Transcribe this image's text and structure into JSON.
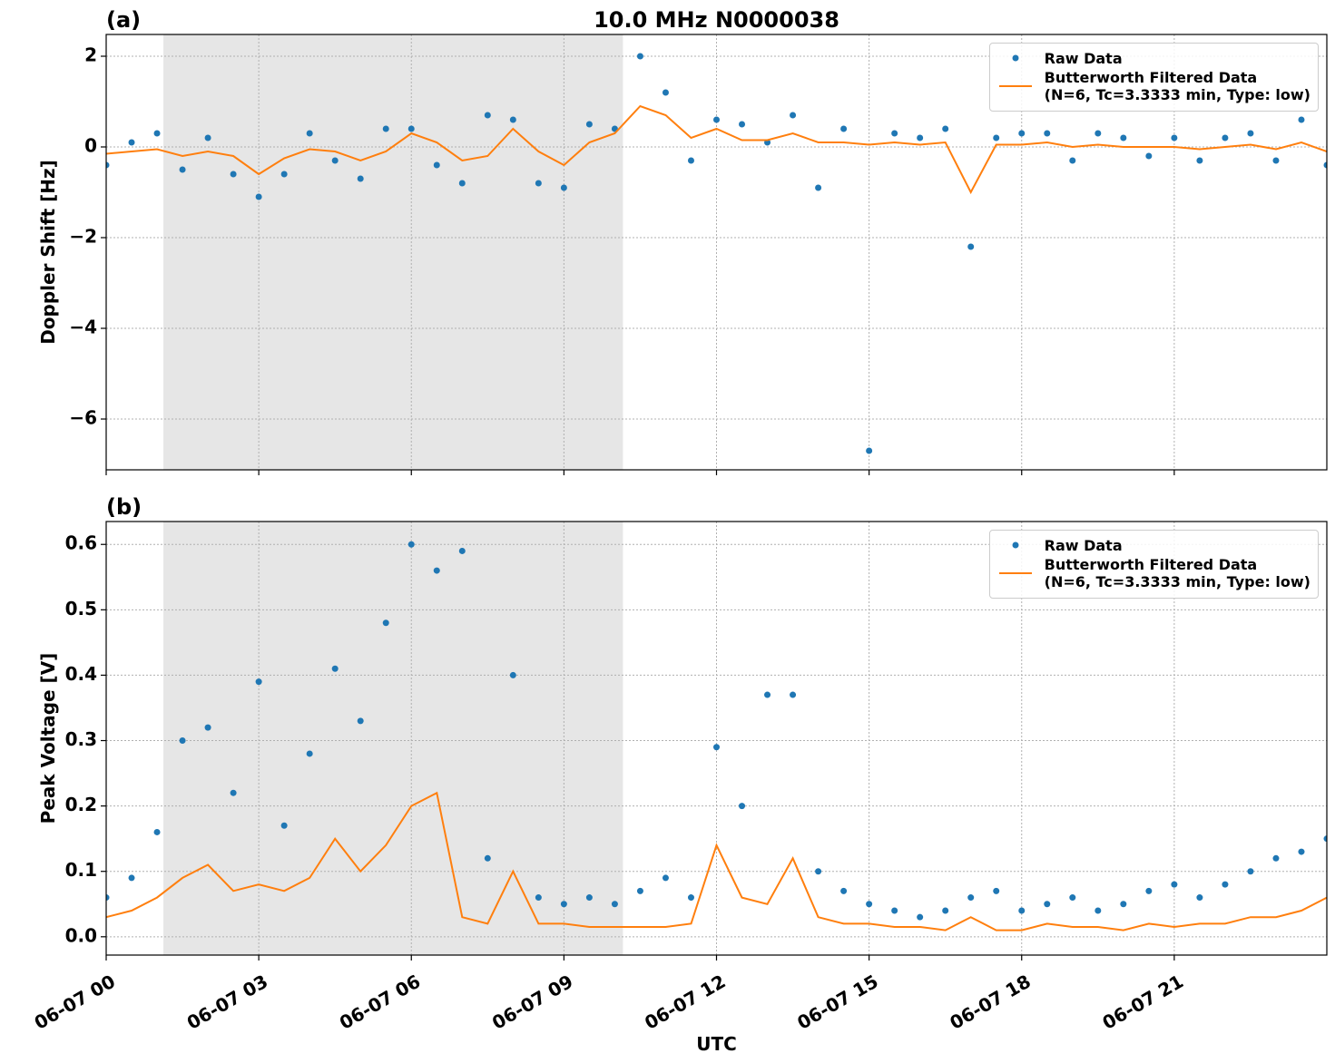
{
  "chart_data": [
    {
      "type": "scatter-line",
      "title": "10.0 MHz N0000038",
      "panel_label": "(a)",
      "ylabel": "Doppler Shift [Hz]",
      "x": [
        0,
        0.5,
        1,
        1.5,
        2,
        2.5,
        3,
        3.5,
        4,
        4.5,
        5,
        5.5,
        6,
        6.5,
        7,
        7.5,
        8,
        8.5,
        9,
        9.5,
        10,
        10.5,
        11,
        11.5,
        12,
        12.5,
        13,
        13.5,
        14,
        14.5,
        15,
        15.5,
        16,
        16.5,
        17,
        17.5,
        18,
        18.5,
        19,
        19.5,
        20,
        20.5,
        21,
        21.5,
        22,
        22.5,
        23,
        23.5,
        24
      ],
      "series": [
        {
          "name": "Raw Data",
          "color": "#1f77b4",
          "style": "points",
          "values": [
            -0.4,
            0.1,
            0.3,
            -0.5,
            0.2,
            -0.6,
            -1.1,
            -0.6,
            0.3,
            -0.3,
            -0.7,
            0.4,
            0.4,
            -0.4,
            -0.8,
            0.7,
            0.6,
            -0.8,
            -0.9,
            0.5,
            0.4,
            2.0,
            1.2,
            -0.3,
            0.6,
            0.5,
            0.1,
            0.7,
            -0.9,
            0.4,
            -6.7,
            0.3,
            0.2,
            0.4,
            -2.2,
            0.2,
            0.3,
            0.3,
            -0.3,
            0.3,
            0.2,
            -0.2,
            0.2,
            -0.3,
            0.2,
            0.3,
            -0.3,
            0.6,
            -0.4
          ]
        },
        {
          "name": "Butterworth Filtered Data\n(N=6, Tc=3.3333 min, Type: low)",
          "color": "#ff7f0e",
          "style": "line",
          "values": [
            -0.15,
            -0.1,
            -0.05,
            -0.2,
            -0.1,
            -0.2,
            -0.6,
            -0.25,
            -0.05,
            -0.1,
            -0.3,
            -0.1,
            0.3,
            0.1,
            -0.3,
            -0.2,
            0.4,
            -0.1,
            -0.4,
            0.1,
            0.3,
            0.9,
            0.7,
            0.2,
            0.4,
            0.15,
            0.15,
            0.3,
            0.1,
            0.1,
            0.05,
            0.1,
            0.05,
            0.1,
            -1.0,
            0.05,
            0.05,
            0.1,
            0.0,
            0.05,
            0.0,
            0.0,
            0.0,
            -0.05,
            0.0,
            0.05,
            -0.05,
            0.1,
            -0.1
          ]
        }
      ],
      "xlim": [
        0,
        24
      ],
      "xticks": [
        0,
        3,
        6,
        9,
        12,
        15,
        18,
        21
      ],
      "ylim": [
        -7.12,
        2.48
      ],
      "yticks": [
        {
          "value": -6,
          "label": "−6"
        },
        {
          "value": -4,
          "label": "−4"
        },
        {
          "value": -2,
          "label": "−2"
        },
        0,
        2
      ],
      "shaded_span": [
        1.125,
        10.16
      ],
      "grid": true,
      "legend": "upper right"
    },
    {
      "type": "scatter-line",
      "panel_label": "(b)",
      "ylabel": "Peak Voltage [V]",
      "xlabel": "UTC",
      "x": [
        0,
        0.5,
        1,
        1.5,
        2,
        2.5,
        3,
        3.5,
        4,
        4.5,
        5,
        5.5,
        6,
        6.5,
        7,
        7.5,
        8,
        8.5,
        9,
        9.5,
        10,
        10.5,
        11,
        11.5,
        12,
        12.5,
        13,
        13.5,
        14,
        14.5,
        15,
        15.5,
        16,
        16.5,
        17,
        17.5,
        18,
        18.5,
        19,
        19.5,
        20,
        20.5,
        21,
        21.5,
        22,
        22.5,
        23,
        23.5,
        24
      ],
      "series": [
        {
          "name": "Raw Data",
          "color": "#1f77b4",
          "style": "points",
          "values": [
            0.06,
            0.09,
            0.16,
            0.3,
            0.32,
            0.22,
            0.39,
            0.17,
            0.28,
            0.41,
            0.33,
            0.48,
            0.6,
            0.56,
            0.59,
            0.12,
            0.4,
            0.06,
            0.05,
            0.06,
            0.05,
            0.07,
            0.09,
            0.06,
            0.29,
            0.2,
            0.37,
            0.37,
            0.1,
            0.07,
            0.05,
            0.04,
            0.03,
            0.04,
            0.06,
            0.07,
            0.04,
            0.05,
            0.06,
            0.04,
            0.05,
            0.07,
            0.08,
            0.06,
            0.08,
            0.1,
            0.12,
            0.13,
            0.15
          ]
        },
        {
          "name": "Butterworth Filtered Data\n(N=6, Tc=3.3333 min, Type: low)",
          "color": "#ff7f0e",
          "style": "line",
          "values": [
            0.03,
            0.04,
            0.06,
            0.09,
            0.11,
            0.07,
            0.08,
            0.07,
            0.09,
            0.15,
            0.1,
            0.14,
            0.2,
            0.22,
            0.03,
            0.02,
            0.1,
            0.02,
            0.02,
            0.015,
            0.015,
            0.015,
            0.015,
            0.02,
            0.14,
            0.06,
            0.05,
            0.12,
            0.03,
            0.02,
            0.02,
            0.015,
            0.015,
            0.01,
            0.03,
            0.01,
            0.01,
            0.02,
            0.015,
            0.015,
            0.01,
            0.02,
            0.015,
            0.02,
            0.02,
            0.03,
            0.03,
            0.04,
            0.06
          ]
        }
      ],
      "xlim": [
        0,
        24
      ],
      "xticks": [
        {
          "value": 0,
          "label": "06-07 00"
        },
        {
          "value": 3,
          "label": "06-07 03"
        },
        {
          "value": 6,
          "label": "06-07 06"
        },
        {
          "value": 9,
          "label": "06-07 09"
        },
        {
          "value": 12,
          "label": "06-07 12"
        },
        {
          "value": 15,
          "label": "06-07 15"
        },
        {
          "value": 18,
          "label": "06-07 18"
        },
        {
          "value": 21,
          "label": "06-07 21"
        }
      ],
      "ylim": [
        -0.028,
        0.635
      ],
      "yticks": [
        {
          "value": 0,
          "label": "0.0"
        },
        0.1,
        0.2,
        0.3,
        0.4,
        0.5,
        0.6
      ],
      "shaded_span": [
        1.125,
        10.16
      ],
      "grid": true,
      "legend": "upper right"
    }
  ]
}
